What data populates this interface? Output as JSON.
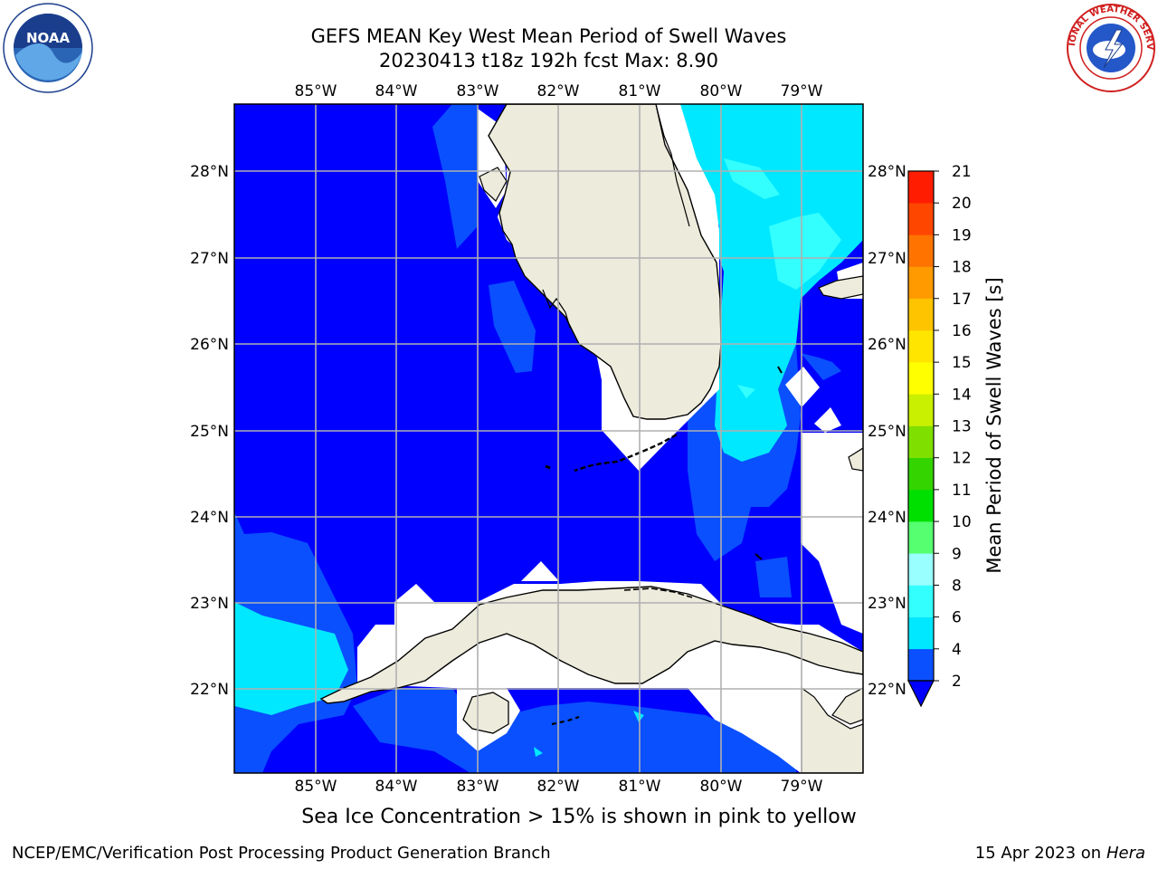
{
  "header": {
    "title_line1": "GEFS MEAN Key West Mean Period of Swell Waves",
    "title_line2": "20230413 t18z 192h fcst   Max: 8.90"
  },
  "logos": {
    "left": {
      "name": "noaa-logo",
      "text": "NOAA"
    },
    "right": {
      "name": "nws-logo",
      "text": "NATIONAL WEATHER SERVICE"
    }
  },
  "map": {
    "lon_labels": [
      "85°W",
      "84°W",
      "83°W",
      "82°W",
      "81°W",
      "80°W",
      "79°W"
    ],
    "lat_labels": [
      "28°N",
      "27°N",
      "26°N",
      "25°N",
      "24°N",
      "23°N",
      "22°N"
    ]
  },
  "colorbar": {
    "label": "Mean Period of Swell Waves [s]",
    "ticks": [
      "2",
      "4",
      "6",
      "8",
      "9",
      "10",
      "11",
      "12",
      "13",
      "14",
      "15",
      "16",
      "17",
      "18",
      "19",
      "20",
      "21"
    ],
    "colors": [
      "#0a50ff",
      "#00e8ff",
      "#33ffff",
      "#99ffff",
      "#55ff70",
      "#00e000",
      "#33d400",
      "#7fe000",
      "#c8f000",
      "#ffff00",
      "#ffe500",
      "#ffc400",
      "#ff9a00",
      "#ff7400",
      "#ff4600",
      "#ff1c00"
    ],
    "under_color": "#0000ff"
  },
  "footer": {
    "note": "Sea Ice Concentration > 15% is shown in pink to yellow",
    "credit": "NCEP/EMC/Verification Post Processing Product Generation Branch",
    "date": "15 Apr 2023 on",
    "machine": "Hera"
  }
}
